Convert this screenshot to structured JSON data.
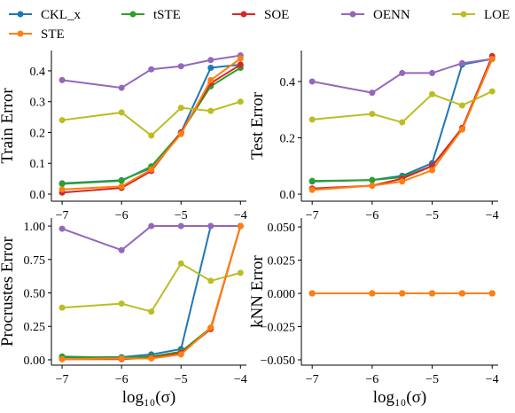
{
  "legend": [
    {
      "name": "CKL_x",
      "color": "#1f77b4"
    },
    {
      "name": "tSTE",
      "color": "#2ca02c"
    },
    {
      "name": "SOE",
      "color": "#d62728"
    },
    {
      "name": "OENN",
      "color": "#9467bd"
    },
    {
      "name": "LOE",
      "color": "#bcbd22"
    },
    {
      "name": "STE",
      "color": "#ff7f0e"
    }
  ],
  "chart_data": [
    {
      "type": "line",
      "ylabel": "Train Error",
      "x": [
        -7,
        -6,
        -5.5,
        -5,
        -4.5,
        -4
      ],
      "xlim": [
        -7.18,
        -3.9
      ],
      "xticks": [
        {
          "value": -7,
          "label": "−7"
        },
        {
          "value": -6,
          "label": "−6"
        },
        {
          "value": -5,
          "label": "−5"
        },
        {
          "value": -4,
          "label": "−4"
        }
      ],
      "ylim": [
        -0.023,
        0.466
      ],
      "yticks": [
        {
          "value": 0,
          "label": "0.0"
        },
        0.1,
        0.2,
        0.3,
        0.4
      ],
      "series": [
        {
          "values": [
            0.035,
            0.045,
            0.085,
            0.2,
            0.41,
            0.42
          ]
        },
        {
          "values": [
            0.033,
            0.043,
            0.09,
            0.2,
            0.35,
            0.41
          ]
        },
        {
          "values": [
            0.005,
            0.02,
            0.075,
            0.2,
            0.36,
            0.42
          ]
        },
        {
          "values": [
            0.37,
            0.345,
            0.405,
            0.415,
            0.435,
            0.45
          ]
        },
        {
          "values": [
            0.24,
            0.265,
            0.19,
            0.28,
            0.27,
            0.3
          ]
        },
        {
          "values": [
            0.015,
            0.025,
            0.08,
            0.195,
            0.37,
            0.44
          ]
        }
      ]
    },
    {
      "type": "line",
      "ylabel": "Test Error",
      "x": [
        -7,
        -6,
        -5.5,
        -5,
        -4.5,
        -4
      ],
      "xlim": [
        -7.18,
        -3.9
      ],
      "xticks": [
        {
          "value": -7,
          "label": "−7"
        },
        {
          "value": -6,
          "label": "−6"
        },
        {
          "value": -5,
          "label": "−5"
        },
        {
          "value": -4,
          "label": "−4"
        }
      ],
      "ylim": [
        -0.025,
        0.51
      ],
      "yticks": [
        {
          "value": 0,
          "label": "0.0"
        },
        0.2,
        0.4
      ],
      "series": [
        {
          "values": [
            0.045,
            0.05,
            0.065,
            0.11,
            0.46,
            0.48
          ]
        },
        {
          "values": [
            0.047,
            0.05,
            0.06,
            0.1,
            0.23,
            0.48
          ]
        },
        {
          "values": [
            0.02,
            0.03,
            0.055,
            0.1,
            0.235,
            0.49
          ]
        },
        {
          "values": [
            0.4,
            0.36,
            0.43,
            0.43,
            0.465,
            0.48
          ]
        },
        {
          "values": [
            0.265,
            0.285,
            0.255,
            0.355,
            0.315,
            0.365
          ]
        },
        {
          "values": [
            0.015,
            0.03,
            0.045,
            0.085,
            0.23,
            0.48
          ]
        }
      ]
    },
    {
      "type": "line",
      "ylabel": "Procrustes Error",
      "xlabel": "log₁₀(σ)",
      "x": [
        -7,
        -6,
        -5.5,
        -5,
        -4.5,
        -4
      ],
      "xlim": [
        -7.18,
        -3.9
      ],
      "xticks": [
        {
          "value": -7,
          "label": "−7"
        },
        {
          "value": -6,
          "label": "−6"
        },
        {
          "value": -5,
          "label": "−5"
        },
        {
          "value": -4,
          "label": "−4"
        }
      ],
      "ylim": [
        -0.04,
        1.06
      ],
      "yticks": [
        {
          "value": 0,
          "label": "0.00"
        },
        0.25,
        {
          "value": 0.5,
          "label": "0.50"
        },
        0.75,
        {
          "value": 1,
          "label": "1.00"
        }
      ],
      "series": [
        {
          "values": [
            0.02,
            0.02,
            0.04,
            0.08,
            1.0,
            1.0
          ]
        },
        {
          "values": [
            0.025,
            0.015,
            0.025,
            0.06,
            0.24,
            1.0
          ]
        },
        {
          "values": [
            0.005,
            0.005,
            0.015,
            0.05,
            0.23,
            1.0
          ]
        },
        {
          "values": [
            0.98,
            0.82,
            1.0,
            1.0,
            1.0,
            1.0
          ]
        },
        {
          "values": [
            0.39,
            0.42,
            0.36,
            0.72,
            0.59,
            0.65
          ]
        },
        {
          "values": [
            0.005,
            0.01,
            0.01,
            0.04,
            0.24,
            1.0
          ]
        }
      ]
    },
    {
      "type": "line",
      "ylabel": "kNN Error",
      "xlabel": "log₁₀(σ)",
      "x": [
        -7,
        -6,
        -5.5,
        -5,
        -4.5,
        -4
      ],
      "xlim": [
        -7.18,
        -3.9
      ],
      "xticks": [
        {
          "value": -7,
          "label": "−7"
        },
        {
          "value": -6,
          "label": "−6"
        },
        {
          "value": -5,
          "label": "−5"
        },
        {
          "value": -4,
          "label": "−4"
        }
      ],
      "ylim": [
        -0.054,
        0.0567
      ],
      "yticks": [
        {
          "value": -0.05,
          "label": "−0.050"
        },
        {
          "value": -0.025,
          "label": "−0.025"
        },
        {
          "value": 0,
          "label": "0.000"
        },
        {
          "value": 0.025,
          "label": "0.025"
        },
        {
          "value": 0.05,
          "label": "0.050"
        }
      ],
      "series": [
        {
          "values": [
            0,
            0,
            0,
            0,
            0,
            0
          ]
        },
        {
          "values": [
            0,
            0,
            0,
            0,
            0,
            0
          ]
        },
        {
          "values": [
            0,
            0,
            0,
            0,
            0,
            0
          ]
        },
        {
          "values": [
            0,
            0,
            0,
            0,
            0,
            0
          ]
        },
        {
          "values": [
            0,
            0,
            0,
            0,
            0,
            0
          ]
        },
        {
          "values": [
            0,
            0,
            0,
            0,
            0,
            0
          ]
        }
      ]
    }
  ]
}
